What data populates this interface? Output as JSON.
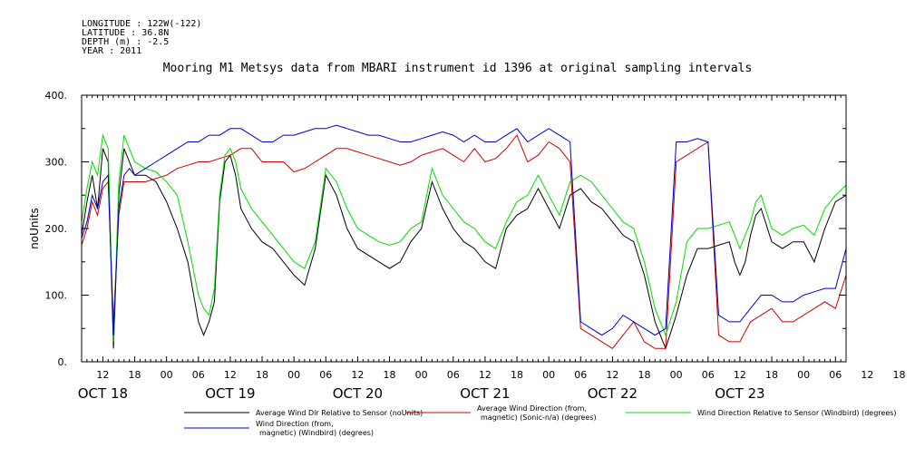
{
  "meta_lines": {
    "longitude": "LONGITUDE : 122W(-122)",
    "latitude": "LATITUDE : 36.8N",
    "depth": "DEPTH (m) : -2.5",
    "year": "YEAR : 2011"
  },
  "chart_data": {
    "type": "line",
    "title": "Mooring M1 Metsys data from MBARI instrument id 1396 at original sampling intervals",
    "ylabel": "noUnits",
    "xlabel": "",
    "ylim": [
      0,
      400
    ],
    "yticks": [
      "0.",
      "100.",
      "200.",
      "300.",
      "400."
    ],
    "xlim_hours": [
      8,
      152
    ],
    "hour_ticks": [
      "12",
      "18",
      "00",
      "06",
      "12",
      "18",
      "00",
      "06",
      "12",
      "18",
      "00",
      "06",
      "12",
      "18",
      "00",
      "06",
      "12",
      "18",
      "00",
      "06",
      "12",
      "18",
      "00",
      "06",
      "12",
      "18"
    ],
    "day_labels": [
      "OCT 18",
      "OCT 19",
      "OCT 20",
      "OCT 21",
      "OCT 22",
      "OCT 23"
    ],
    "grid": false,
    "legend_position": "bottom",
    "series": [
      {
        "name": "Average Wind Dir Relative to Sensor (noUnits)",
        "color": "#000000",
        "x": [
          8,
          9,
          10,
          11,
          12,
          13,
          14,
          15,
          16,
          17,
          18,
          20,
          22,
          24,
          26,
          28,
          30,
          31,
          32,
          33,
          34,
          35,
          36,
          37,
          38,
          40,
          42,
          44,
          46,
          48,
          50,
          52,
          54,
          56,
          58,
          60,
          62,
          64,
          66,
          68,
          70,
          72,
          74,
          76,
          78,
          80,
          82,
          84,
          86,
          88,
          90,
          92,
          94,
          96,
          98,
          100,
          102,
          104,
          106,
          108,
          110,
          112,
          114,
          116,
          118,
          120,
          122,
          124,
          126,
          128,
          130,
          131,
          132,
          133,
          134,
          135,
          136,
          138,
          140,
          142,
          144,
          146,
          148,
          150,
          152
        ],
        "y": [
          190,
          240,
          280,
          230,
          320,
          300,
          20,
          250,
          320,
          300,
          280,
          280,
          270,
          240,
          200,
          150,
          60,
          40,
          60,
          90,
          240,
          300,
          310,
          280,
          230,
          200,
          180,
          170,
          150,
          130,
          115,
          170,
          280,
          250,
          200,
          170,
          160,
          150,
          140,
          150,
          180,
          200,
          270,
          230,
          200,
          180,
          170,
          150,
          140,
          200,
          220,
          230,
          260,
          230,
          200,
          250,
          260,
          240,
          230,
          210,
          190,
          180,
          130,
          60,
          20,
          70,
          130,
          170,
          170,
          175,
          180,
          150,
          130,
          150,
          190,
          220,
          230,
          180,
          170,
          180,
          180,
          150,
          200,
          240,
          250
        ]
      },
      {
        "name": "Average Wind Direction (from, magnetic) (Sonic-n/a) (degrees)",
        "color": "#d00000",
        "x": [
          8,
          9,
          10,
          11,
          12,
          13,
          14,
          15,
          16,
          17,
          18,
          20,
          22,
          24,
          26,
          28,
          30,
          32,
          34,
          36,
          38,
          40,
          42,
          44,
          46,
          48,
          50,
          52,
          54,
          56,
          58,
          60,
          62,
          64,
          66,
          68,
          70,
          72,
          74,
          76,
          78,
          80,
          82,
          84,
          86,
          88,
          90,
          92,
          94,
          96,
          98,
          100,
          102,
          104,
          106,
          108,
          110,
          112,
          114,
          116,
          118,
          120,
          122,
          124,
          126,
          128,
          130,
          132,
          134,
          136,
          138,
          140,
          142,
          144,
          146,
          148,
          150,
          152
        ],
        "y": [
          175,
          200,
          240,
          220,
          260,
          270,
          60,
          220,
          270,
          270,
          270,
          270,
          275,
          280,
          290,
          295,
          300,
          300,
          305,
          310,
          320,
          320,
          300,
          300,
          300,
          285,
          290,
          300,
          310,
          320,
          320,
          315,
          310,
          305,
          300,
          295,
          300,
          310,
          315,
          320,
          310,
          300,
          320,
          300,
          305,
          320,
          340,
          300,
          310,
          330,
          320,
          300,
          50,
          40,
          30,
          20,
          40,
          60,
          30,
          20,
          20,
          300,
          310,
          320,
          330,
          40,
          30,
          30,
          60,
          70,
          80,
          60,
          60,
          70,
          80,
          90,
          80,
          130
        ]
      },
      {
        "name": "Wind Direction Relative to Sensor (Windbird) (degrees)",
        "color": "#00dd00",
        "x": [
          8,
          9,
          10,
          11,
          12,
          13,
          14,
          15,
          16,
          17,
          18,
          20,
          22,
          24,
          26,
          28,
          30,
          31,
          32,
          33,
          34,
          35,
          36,
          37,
          38,
          40,
          42,
          44,
          46,
          48,
          50,
          52,
          54,
          56,
          58,
          60,
          62,
          64,
          66,
          68,
          70,
          72,
          74,
          76,
          78,
          80,
          82,
          84,
          86,
          88,
          90,
          92,
          94,
          96,
          98,
          100,
          102,
          104,
          106,
          108,
          110,
          112,
          114,
          116,
          118,
          120,
          122,
          124,
          126,
          128,
          130,
          131,
          132,
          133,
          134,
          135,
          136,
          138,
          140,
          142,
          144,
          146,
          148,
          150,
          152
        ],
        "y": [
          210,
          260,
          300,
          280,
          340,
          320,
          30,
          270,
          340,
          320,
          300,
          290,
          285,
          270,
          250,
          180,
          100,
          80,
          70,
          110,
          250,
          310,
          320,
          300,
          260,
          230,
          210,
          190,
          170,
          150,
          140,
          180,
          290,
          270,
          230,
          200,
          190,
          180,
          175,
          180,
          200,
          210,
          290,
          250,
          230,
          210,
          200,
          180,
          170,
          210,
          240,
          250,
          280,
          250,
          220,
          270,
          280,
          270,
          250,
          230,
          210,
          200,
          150,
          80,
          40,
          90,
          180,
          200,
          200,
          205,
          210,
          190,
          170,
          190,
          210,
          240,
          250,
          200,
          190,
          200,
          205,
          190,
          230,
          250,
          265
        ]
      },
      {
        "name": "Wind Direction (from, magnetic) (Windbird) (degrees)",
        "color": "#0000cc",
        "x": [
          8,
          9,
          10,
          11,
          12,
          13,
          14,
          15,
          16,
          17,
          18,
          20,
          22,
          24,
          26,
          28,
          30,
          32,
          34,
          36,
          38,
          40,
          42,
          44,
          46,
          48,
          50,
          52,
          54,
          56,
          58,
          60,
          62,
          64,
          66,
          68,
          70,
          72,
          74,
          76,
          78,
          80,
          82,
          84,
          86,
          88,
          90,
          92,
          94,
          96,
          98,
          100,
          102,
          104,
          106,
          108,
          110,
          112,
          114,
          116,
          118,
          120,
          122,
          124,
          126,
          128,
          130,
          132,
          134,
          136,
          138,
          140,
          142,
          144,
          146,
          148,
          150,
          152
        ],
        "y": [
          185,
          210,
          250,
          230,
          270,
          280,
          40,
          230,
          280,
          290,
          280,
          290,
          300,
          310,
          320,
          330,
          330,
          340,
          340,
          350,
          350,
          340,
          330,
          330,
          340,
          340,
          345,
          350,
          350,
          355,
          350,
          345,
          340,
          340,
          335,
          330,
          330,
          335,
          340,
          345,
          340,
          330,
          340,
          330,
          330,
          340,
          350,
          330,
          340,
          350,
          340,
          330,
          60,
          50,
          40,
          50,
          70,
          60,
          50,
          40,
          50,
          330,
          330,
          335,
          330,
          70,
          60,
          60,
          80,
          100,
          100,
          90,
          90,
          100,
          105,
          110,
          110,
          170
        ]
      }
    ]
  }
}
